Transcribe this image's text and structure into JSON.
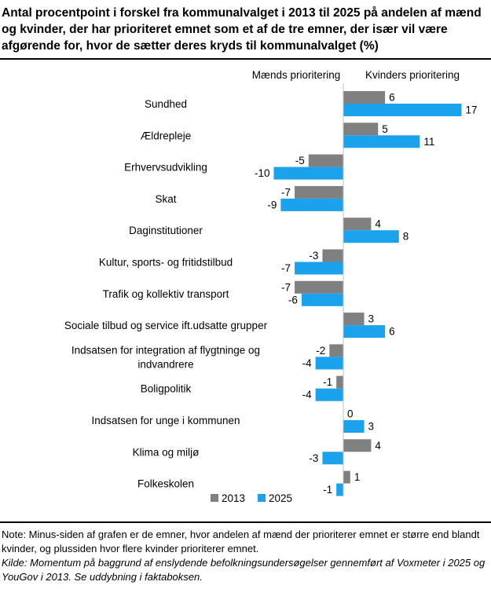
{
  "title": "Antal procentpoint i forskel fra kommunalvalget i 2013 til 2025 på andelen af mænd og kvinder, der har prioriteret emnet som et af de tre emner, der især vil være afgørende for, hvor de sætter deres kryds til kommunalvalget  (%)",
  "note": "Note: Minus-siden af grafen er de emner, hvor andelen af mænd der prioriterer emnet er større end blandt kvinder, og plussiden hvor flere kvinder prioriterer emnet.",
  "source": "Kilde: Momentum på baggrund af enslydende befolkningsundersøgelser gennemført af Voxmeter i 2025 og YouGov i 2013. Se uddybning i faktaboksen.",
  "chart_data": {
    "type": "bar",
    "orientation": "horizontal",
    "header_left": "Mænds prioritering",
    "header_right": "Kvinders prioritering",
    "categories": [
      "Sundhed",
      "Ældrepleje",
      "Erhvervsudvikling",
      "Skat",
      "Daginstitutioner",
      "Kultur, sports- og fritidstilbud",
      "Trafik og kollektiv transport",
      "Sociale tilbud og service ift.udsatte grupper",
      "Indsatsen for integration af flygtninge og indvandrere",
      "Boligpolitik",
      "Indsatsen for unge i kommunen",
      "Klima og miljø",
      "Folkeskolen"
    ],
    "series": [
      {
        "name": "2013",
        "color": "#808080",
        "values": [
          6,
          5,
          -5,
          -7,
          4,
          -3,
          -7,
          3,
          -2,
          -1,
          0,
          4,
          1
        ]
      },
      {
        "name": "2025",
        "color": "#1aa3ec",
        "values": [
          17,
          11,
          -10,
          -9,
          8,
          -7,
          -6,
          6,
          -4,
          -4,
          3,
          -3,
          -1
        ]
      }
    ],
    "legend_position": "bottom-right"
  }
}
